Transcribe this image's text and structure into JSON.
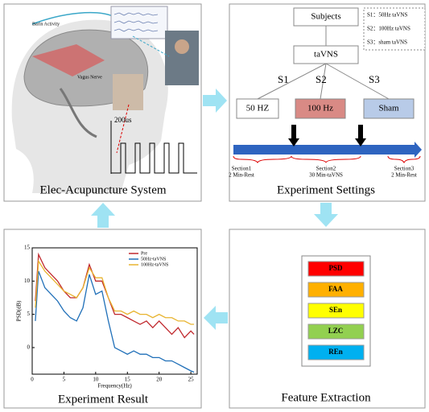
{
  "panels": {
    "system": {
      "title": "Elec-Acupuncture System",
      "brain_label": "Barin Activity",
      "nerve_label": "Vagus Nerve",
      "pulse_label": "200us"
    },
    "settings": {
      "title": "Experiment Settings",
      "root": "Subjects",
      "node": "taVNS",
      "groups": [
        {
          "key": "S1",
          "label": "50 HZ",
          "color": "#ffffff"
        },
        {
          "key": "S2",
          "label": "100 Hz",
          "color": "#d98a85"
        },
        {
          "key": "S3",
          "label": "Sham",
          "color": "#b8cbe8"
        }
      ],
      "legend": [
        "S1：50Hz taVNS",
        "S2：100Hz taVNS",
        "S3：sham taVNS"
      ],
      "sections": [
        {
          "name": "Section1",
          "detail": "2 Min-Rest"
        },
        {
          "name": "Section2",
          "detail": "30 Min-taVNS"
        },
        {
          "name": "Section3",
          "detail": "2 Min-Rest"
        }
      ]
    },
    "features": {
      "title": "Feature Extraction",
      "items": [
        {
          "name": "PSD",
          "color": "#ff0000"
        },
        {
          "name": "FAA",
          "color": "#ffb000"
        },
        {
          "name": "SEn",
          "color": "#ffff00"
        },
        {
          "name": "LZC",
          "color": "#92d050"
        },
        {
          "name": "REn",
          "color": "#00b0f0"
        }
      ]
    },
    "result": {
      "title": "Experiment Result",
      "chart": {
        "type": "line",
        "xlabel": "Frequency(Hz)",
        "ylabel": "PSD(dB)",
        "x": [
          0.5,
          1,
          2,
          3,
          4,
          5,
          6,
          7,
          8,
          9,
          10,
          11,
          12,
          13,
          14,
          15,
          16,
          17,
          18,
          19,
          20,
          21,
          22,
          23,
          24,
          25,
          25.5
        ],
        "series": [
          {
            "name": "Pre",
            "color": "#c0282d",
            "values": [
              7,
              14,
              12,
              11,
              10,
              8.5,
              7.5,
              7.5,
              9,
              12.5,
              10,
              10,
              7.5,
              5,
              5,
              4.5,
              4,
              3.5,
              4,
              3,
              4,
              3,
              2,
              3,
              1.5,
              2.5,
              2
            ]
          },
          {
            "name": "50Hz-taVNS",
            "color": "#1f6fb8",
            "values": [
              4,
              11.5,
              9,
              8,
              7,
              5.5,
              4.5,
              4,
              6,
              11,
              8,
              8.5,
              4,
              0,
              -0.5,
              -1,
              -0.5,
              -1,
              -1,
              -1.5,
              -1.5,
              -2,
              -2,
              -2.5,
              -3,
              -3.5,
              -3.7
            ]
          },
          {
            "name": "100Hz-taVNS",
            "color": "#e8b430",
            "values": [
              6,
              13,
              11.5,
              10.5,
              9.5,
              8.5,
              8,
              7.5,
              9,
              12,
              10.5,
              10.5,
              7.5,
              5.5,
              5.5,
              5,
              5.5,
              5,
              5,
              4.5,
              5,
              4.5,
              4.5,
              4,
              4,
              3.5,
              3.5
            ]
          }
        ],
        "xlim": [
          0,
          26
        ],
        "ylim": [
          -4,
          15
        ],
        "xticks": [
          0,
          5,
          10,
          15,
          20,
          25
        ],
        "yticks": [
          0,
          5,
          10,
          15
        ]
      }
    }
  }
}
